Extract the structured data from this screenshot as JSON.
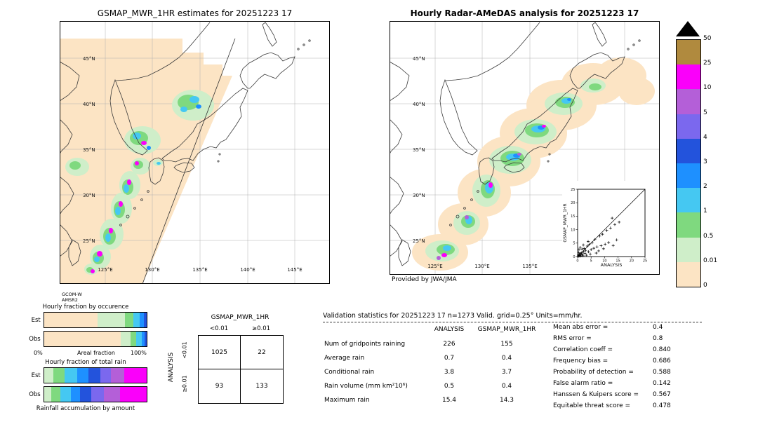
{
  "palette": {
    "c0": "#fce4c4",
    "c1": "#cfeec9",
    "c2": "#7fd97f",
    "c3": "#45c8f2",
    "c4": "#1e90ff",
    "c5": "#2353dc",
    "c6": "#7b68ee",
    "c7": "#b45fd8",
    "c8": "#fa00fa",
    "c9": "#b08a3e"
  },
  "chart_data": [
    {
      "type": "map",
      "title": "GSMAP_MWR_1HR estimates for 20251223 17",
      "lat_ticks": [
        "45°N",
        "40°N",
        "35°N",
        "30°N",
        "25°N"
      ],
      "lon_ticks": [
        "125°E",
        "130°E",
        "135°E",
        "140°E",
        "145°E"
      ],
      "source_lines": [
        "GCOM-W",
        "AMSR2"
      ],
      "blobs": [
        [
          190,
          120,
          30,
          22,
          "c1"
        ],
        [
          183,
          116,
          15,
          11,
          "c2"
        ],
        [
          192,
          112,
          7,
          5,
          "c3"
        ],
        [
          177,
          126,
          5,
          4,
          "c3"
        ],
        [
          198,
          122,
          4,
          3,
          "c4"
        ],
        [
          25,
          208,
          17,
          13,
          "c1"
        ],
        [
          22,
          206,
          8,
          6,
          "c2"
        ],
        [
          118,
          170,
          26,
          20,
          "c1"
        ],
        [
          113,
          167,
          13,
          10,
          "c2"
        ],
        [
          110,
          164,
          6,
          5,
          "c3"
        ],
        [
          120,
          174,
          4,
          3,
          "c8"
        ],
        [
          127,
          181,
          3,
          3,
          "c4"
        ],
        [
          115,
          207,
          14,
          12,
          "c1"
        ],
        [
          112,
          205,
          7,
          6,
          "c2"
        ],
        [
          110,
          203,
          3,
          3,
          "c8"
        ],
        [
          140,
          202,
          7,
          5,
          "c1"
        ],
        [
          141,
          203,
          3,
          2,
          "c3"
        ],
        [
          100,
          234,
          15,
          20,
          "c1"
        ],
        [
          97,
          237,
          8,
          11,
          "c2"
        ],
        [
          95,
          239,
          4,
          6,
          "c3"
        ],
        [
          99,
          230,
          3,
          4,
          "c8"
        ],
        [
          88,
          267,
          15,
          22,
          "c1"
        ],
        [
          85,
          269,
          8,
          12,
          "c2"
        ],
        [
          83,
          271,
          4,
          6,
          "c3"
        ],
        [
          87,
          261,
          3,
          4,
          "c8"
        ],
        [
          74,
          304,
          17,
          22,
          "c1"
        ],
        [
          71,
          307,
          9,
          12,
          "c2"
        ],
        [
          69,
          309,
          4,
          6,
          "c3"
        ],
        [
          73,
          299,
          3,
          4,
          "c8"
        ],
        [
          58,
          336,
          15,
          17,
          "c1"
        ],
        [
          55,
          338,
          8,
          9,
          "c2"
        ],
        [
          53,
          340,
          4,
          4,
          "c3"
        ],
        [
          57,
          332,
          4,
          4,
          "c8"
        ],
        [
          45,
          354,
          10,
          8,
          "c1"
        ],
        [
          43,
          355,
          5,
          4,
          "c2"
        ],
        [
          47,
          357,
          3,
          3,
          "c8"
        ]
      ]
    },
    {
      "type": "map",
      "title": "Hourly Radar-AMeDAS analysis for 20251223 17",
      "lat_ticks": [
        "45°N",
        "40°N",
        "35°N",
        "30°N",
        "25°N"
      ],
      "lon_ticks": [
        "125°E",
        "130°E",
        "135°E"
      ],
      "credit": "Provided by JWA/JMA",
      "blobs": [
        [
          72,
          330,
          40,
          26,
          "c0"
        ],
        [
          105,
          290,
          36,
          30,
          "c0"
        ],
        [
          135,
          245,
          38,
          34,
          "c0"
        ],
        [
          170,
          200,
          45,
          36,
          "c0"
        ],
        [
          205,
          160,
          48,
          36,
          "c0"
        ],
        [
          245,
          120,
          50,
          36,
          "c0"
        ],
        [
          290,
          90,
          45,
          30,
          "c0"
        ],
        [
          330,
          78,
          36,
          26,
          "c0"
        ],
        [
          352,
          100,
          26,
          20,
          "c0"
        ],
        [
          75,
          328,
          24,
          15,
          "c1"
        ],
        [
          80,
          326,
          13,
          8,
          "c2"
        ],
        [
          110,
          288,
          19,
          17,
          "c1"
        ],
        [
          112,
          286,
          10,
          9,
          "c2"
        ],
        [
          138,
          242,
          20,
          23,
          "c1"
        ],
        [
          140,
          240,
          10,
          13,
          "c2"
        ],
        [
          172,
          198,
          30,
          20,
          "c1"
        ],
        [
          175,
          196,
          17,
          11,
          "c2"
        ],
        [
          208,
          158,
          30,
          18,
          "c1"
        ],
        [
          210,
          156,
          17,
          10,
          "c2"
        ],
        [
          248,
          118,
          27,
          16,
          "c1"
        ],
        [
          250,
          116,
          14,
          8,
          "c2"
        ],
        [
          290,
          92,
          18,
          10,
          "c1"
        ],
        [
          293,
          94,
          9,
          5,
          "c2"
        ],
        [
          82,
          324,
          6,
          4,
          "c3"
        ],
        [
          78,
          334,
          4,
          3,
          "c8"
        ],
        [
          70,
          338,
          3,
          3,
          "c7"
        ],
        [
          113,
          284,
          5,
          6,
          "c3"
        ],
        [
          110,
          280,
          3,
          3,
          "c7"
        ],
        [
          142,
          238,
          6,
          8,
          "c3"
        ],
        [
          144,
          234,
          3,
          4,
          "c8"
        ],
        [
          176,
          194,
          10,
          5,
          "c3"
        ],
        [
          181,
          192,
          5,
          3,
          "c4"
        ],
        [
          185,
          190,
          3,
          2,
          "c7"
        ],
        [
          212,
          154,
          10,
          5,
          "c3"
        ],
        [
          216,
          152,
          5,
          3,
          "c4"
        ],
        [
          220,
          150,
          3,
          2,
          "c8"
        ],
        [
          252,
          114,
          7,
          4,
          "c3"
        ],
        [
          256,
          112,
          3,
          2,
          "c4"
        ]
      ]
    },
    {
      "type": "scatter",
      "xlabel": "ANALYSIS",
      "ylabel": "GSMAP_MWR_1HR",
      "tick_labels": [
        "0",
        "5",
        "10",
        "15",
        "20",
        "25"
      ],
      "xlim": [
        0,
        25
      ],
      "ylim": [
        0,
        25
      ],
      "identity_line": true,
      "points": [
        [
          0.2,
          0.1
        ],
        [
          0.3,
          0.5
        ],
        [
          0.5,
          0.2
        ],
        [
          0.6,
          0.8
        ],
        [
          0.8,
          0.4
        ],
        [
          1,
          0.2
        ],
        [
          1,
          1.1
        ],
        [
          1.3,
          0.6
        ],
        [
          1.5,
          1.4
        ],
        [
          1.8,
          0.9
        ],
        [
          2,
          0.3
        ],
        [
          2.2,
          1.9
        ],
        [
          2.4,
          3
        ],
        [
          2.7,
          1.2
        ],
        [
          3,
          2.3
        ],
        [
          0.4,
          1.5
        ],
        [
          0.5,
          2.6
        ],
        [
          0.9,
          3.4
        ],
        [
          1.6,
          2.8
        ],
        [
          3.3,
          0.5
        ],
        [
          3.6,
          3.9
        ],
        [
          4,
          1.8
        ],
        [
          4.3,
          4.6
        ],
        [
          4.7,
          0.9
        ],
        [
          5,
          2.6
        ],
        [
          5.4,
          5.1
        ],
        [
          6,
          3.1
        ],
        [
          6.4,
          6.3
        ],
        [
          6.9,
          1.3
        ],
        [
          7.2,
          3.6
        ],
        [
          7.8,
          2.1
        ],
        [
          8.2,
          7.6
        ],
        [
          8.7,
          4
        ],
        [
          9.2,
          8.3
        ],
        [
          9.6,
          2.9
        ],
        [
          10.2,
          4.6
        ],
        [
          10.8,
          9.7
        ],
        [
          11.5,
          5.2
        ],
        [
          12.2,
          10.6
        ],
        [
          12.8,
          14.3
        ],
        [
          13.2,
          4.1
        ],
        [
          13.8,
          11.9
        ],
        [
          14.5,
          6.2
        ],
        [
          15.4,
          12.8
        ],
        [
          3.9,
          5.6
        ],
        [
          2.1,
          4.3
        ]
      ]
    },
    {
      "type": "colorbar",
      "labels": [
        "50",
        "25",
        "10",
        "5",
        "4",
        "3",
        "2",
        "1",
        "0.5",
        "0.01",
        "0"
      ],
      "colors": [
        "#b08a3e",
        "#fa00fa",
        "#b45fd8",
        "#7b68ee",
        "#2353dc",
        "#1e90ff",
        "#45c8f2",
        "#7fd97f",
        "#cfeec9",
        "#fce4c4"
      ],
      "overflow_color": "#000000",
      "units": "mm/hr"
    },
    {
      "type": "bar",
      "title": "Hourly fraction by occurence",
      "xlabel": "Areal fraction",
      "x_min_label": "0%",
      "x_max_label": "100%",
      "rows": [
        "Est",
        "Obs"
      ],
      "series": [
        {
          "name": "Est",
          "segments": [
            [
              "c0",
              52
            ],
            [
              "c1",
              27
            ],
            [
              "c2",
              8
            ],
            [
              "c3",
              6
            ],
            [
              "c4",
              4
            ],
            [
              "c5",
              3
            ]
          ]
        },
        {
          "name": "Obs",
          "segments": [
            [
              "c0",
              75
            ],
            [
              "c1",
              9
            ],
            [
              "c2",
              6
            ],
            [
              "c3",
              5
            ],
            [
              "c4",
              3
            ],
            [
              "c5",
              2
            ]
          ]
        }
      ]
    },
    {
      "type": "bar",
      "title": "Hourly fraction of total rain",
      "footer": "Rainfall accumulation by amount",
      "rows": [
        "Est",
        "Obs"
      ],
      "series": [
        {
          "name": "Est",
          "segments": [
            [
              "c1",
              9
            ],
            [
              "c2",
              11
            ],
            [
              "c3",
              12
            ],
            [
              "c4",
              11
            ],
            [
              "c5",
              12
            ],
            [
              "c6",
              10
            ],
            [
              "c7",
              13
            ],
            [
              "c8",
              22
            ]
          ]
        },
        {
          "name": "Obs",
          "segments": [
            [
              "c1",
              7
            ],
            [
              "c2",
              9
            ],
            [
              "c3",
              10
            ],
            [
              "c4",
              9
            ],
            [
              "c5",
              11
            ],
            [
              "c6",
              12
            ],
            [
              "c7",
              16
            ],
            [
              "c8",
              26
            ]
          ]
        }
      ]
    },
    {
      "type": "table",
      "title": "GSMAP_MWR_1HR",
      "row_axis_label": "ANALYSIS",
      "col_labels": [
        "<0.01",
        "≥0.01"
      ],
      "row_labels": [
        "<0.01",
        "≥0.01"
      ],
      "values": [
        [
          "1025",
          "22"
        ],
        [
          "93",
          "133"
        ]
      ]
    },
    {
      "type": "table",
      "title": "Validation statistics for 20251223 17  n=1273 Valid. grid=0.25° Units=mm/hr.",
      "columns": [
        "ANALYSIS",
        "GSMAP_MWR_1HR"
      ],
      "rows": [
        {
          "label": "Num of gridpoints raining",
          "analysis": "226",
          "gsmap": "155"
        },
        {
          "label": "Average rain",
          "analysis": "0.7",
          "gsmap": "0.4"
        },
        {
          "label": "Conditional rain",
          "analysis": "3.8",
          "gsmap": "3.7"
        },
        {
          "label": "Rain volume (mm km²10⁶)",
          "analysis": "0.5",
          "gsmap": "0.4"
        },
        {
          "label": "Maximum rain",
          "analysis": "15.4",
          "gsmap": "14.3"
        }
      ],
      "extra_stats": [
        {
          "label": "Mean abs error =",
          "value": "0.4"
        },
        {
          "label": "RMS error =",
          "value": "0.8"
        },
        {
          "label": "Correlation coeff =",
          "value": "0.840"
        },
        {
          "label": "Frequency bias =",
          "value": "0.686"
        },
        {
          "label": "Probability of detection =",
          "value": "0.588"
        },
        {
          "label": "False alarm ratio =",
          "value": "0.142"
        },
        {
          "label": "Hanssen & Kuipers score =",
          "value": "0.567"
        },
        {
          "label": "Equitable threat score =",
          "value": "0.478"
        }
      ]
    }
  ]
}
